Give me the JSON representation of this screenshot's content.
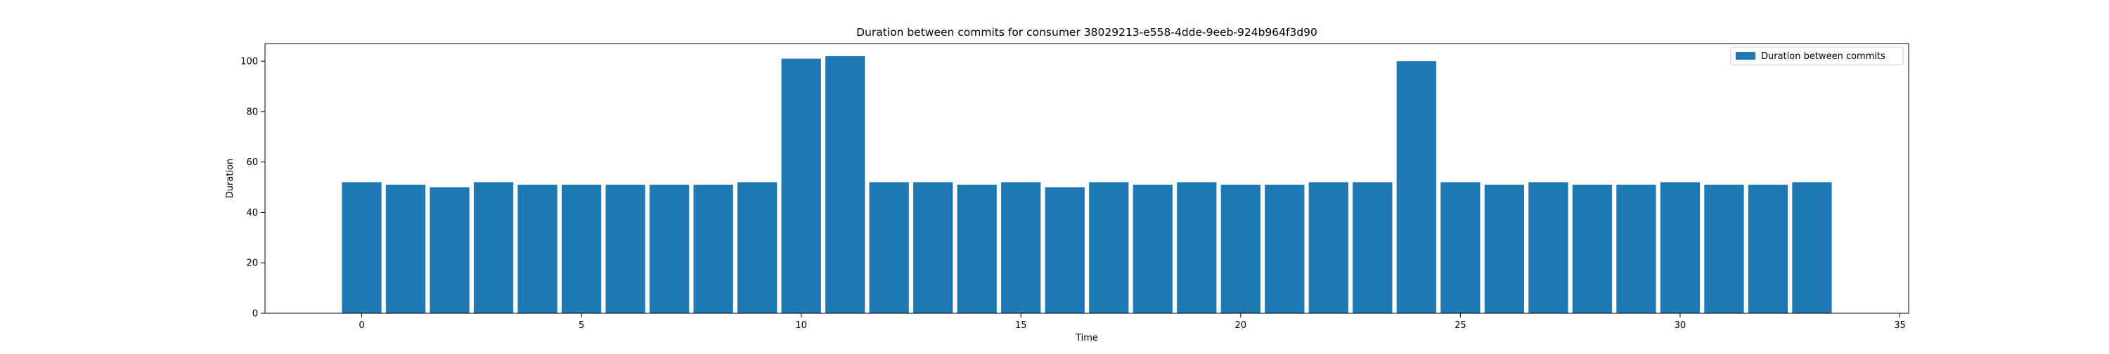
{
  "chart_data": {
    "type": "bar",
    "title": "Duration between commits for consumer 38029213-e558-4dde-9eeb-924b964f3d90",
    "xlabel": "Time",
    "ylabel": "Duration",
    "x": [
      0,
      1,
      2,
      3,
      4,
      5,
      6,
      7,
      8,
      9,
      10,
      11,
      12,
      13,
      14,
      15,
      16,
      17,
      18,
      19,
      20,
      21,
      22,
      23,
      24,
      25,
      26,
      27,
      28,
      29,
      30,
      31,
      32,
      33
    ],
    "values": [
      52,
      51,
      50,
      52,
      51,
      51,
      51,
      51,
      51,
      52,
      101,
      102,
      52,
      52,
      51,
      52,
      50,
      52,
      51,
      52,
      51,
      51,
      52,
      52,
      100,
      52,
      51,
      52,
      51,
      51,
      52,
      51,
      51,
      52
    ],
    "xlim": [
      -2.2,
      35.2
    ],
    "ylim": [
      0,
      107
    ],
    "xticks": [
      0,
      5,
      10,
      15,
      20,
      25,
      30,
      35
    ],
    "yticks": [
      0,
      20,
      40,
      60,
      80,
      100
    ],
    "bar_width": 0.9,
    "grid": false,
    "legend": {
      "position": "top-right",
      "entries": [
        {
          "label": "Duration between commits",
          "color": "#1f77b4"
        }
      ]
    },
    "colors": {
      "bar": "#1f77b4"
    }
  }
}
